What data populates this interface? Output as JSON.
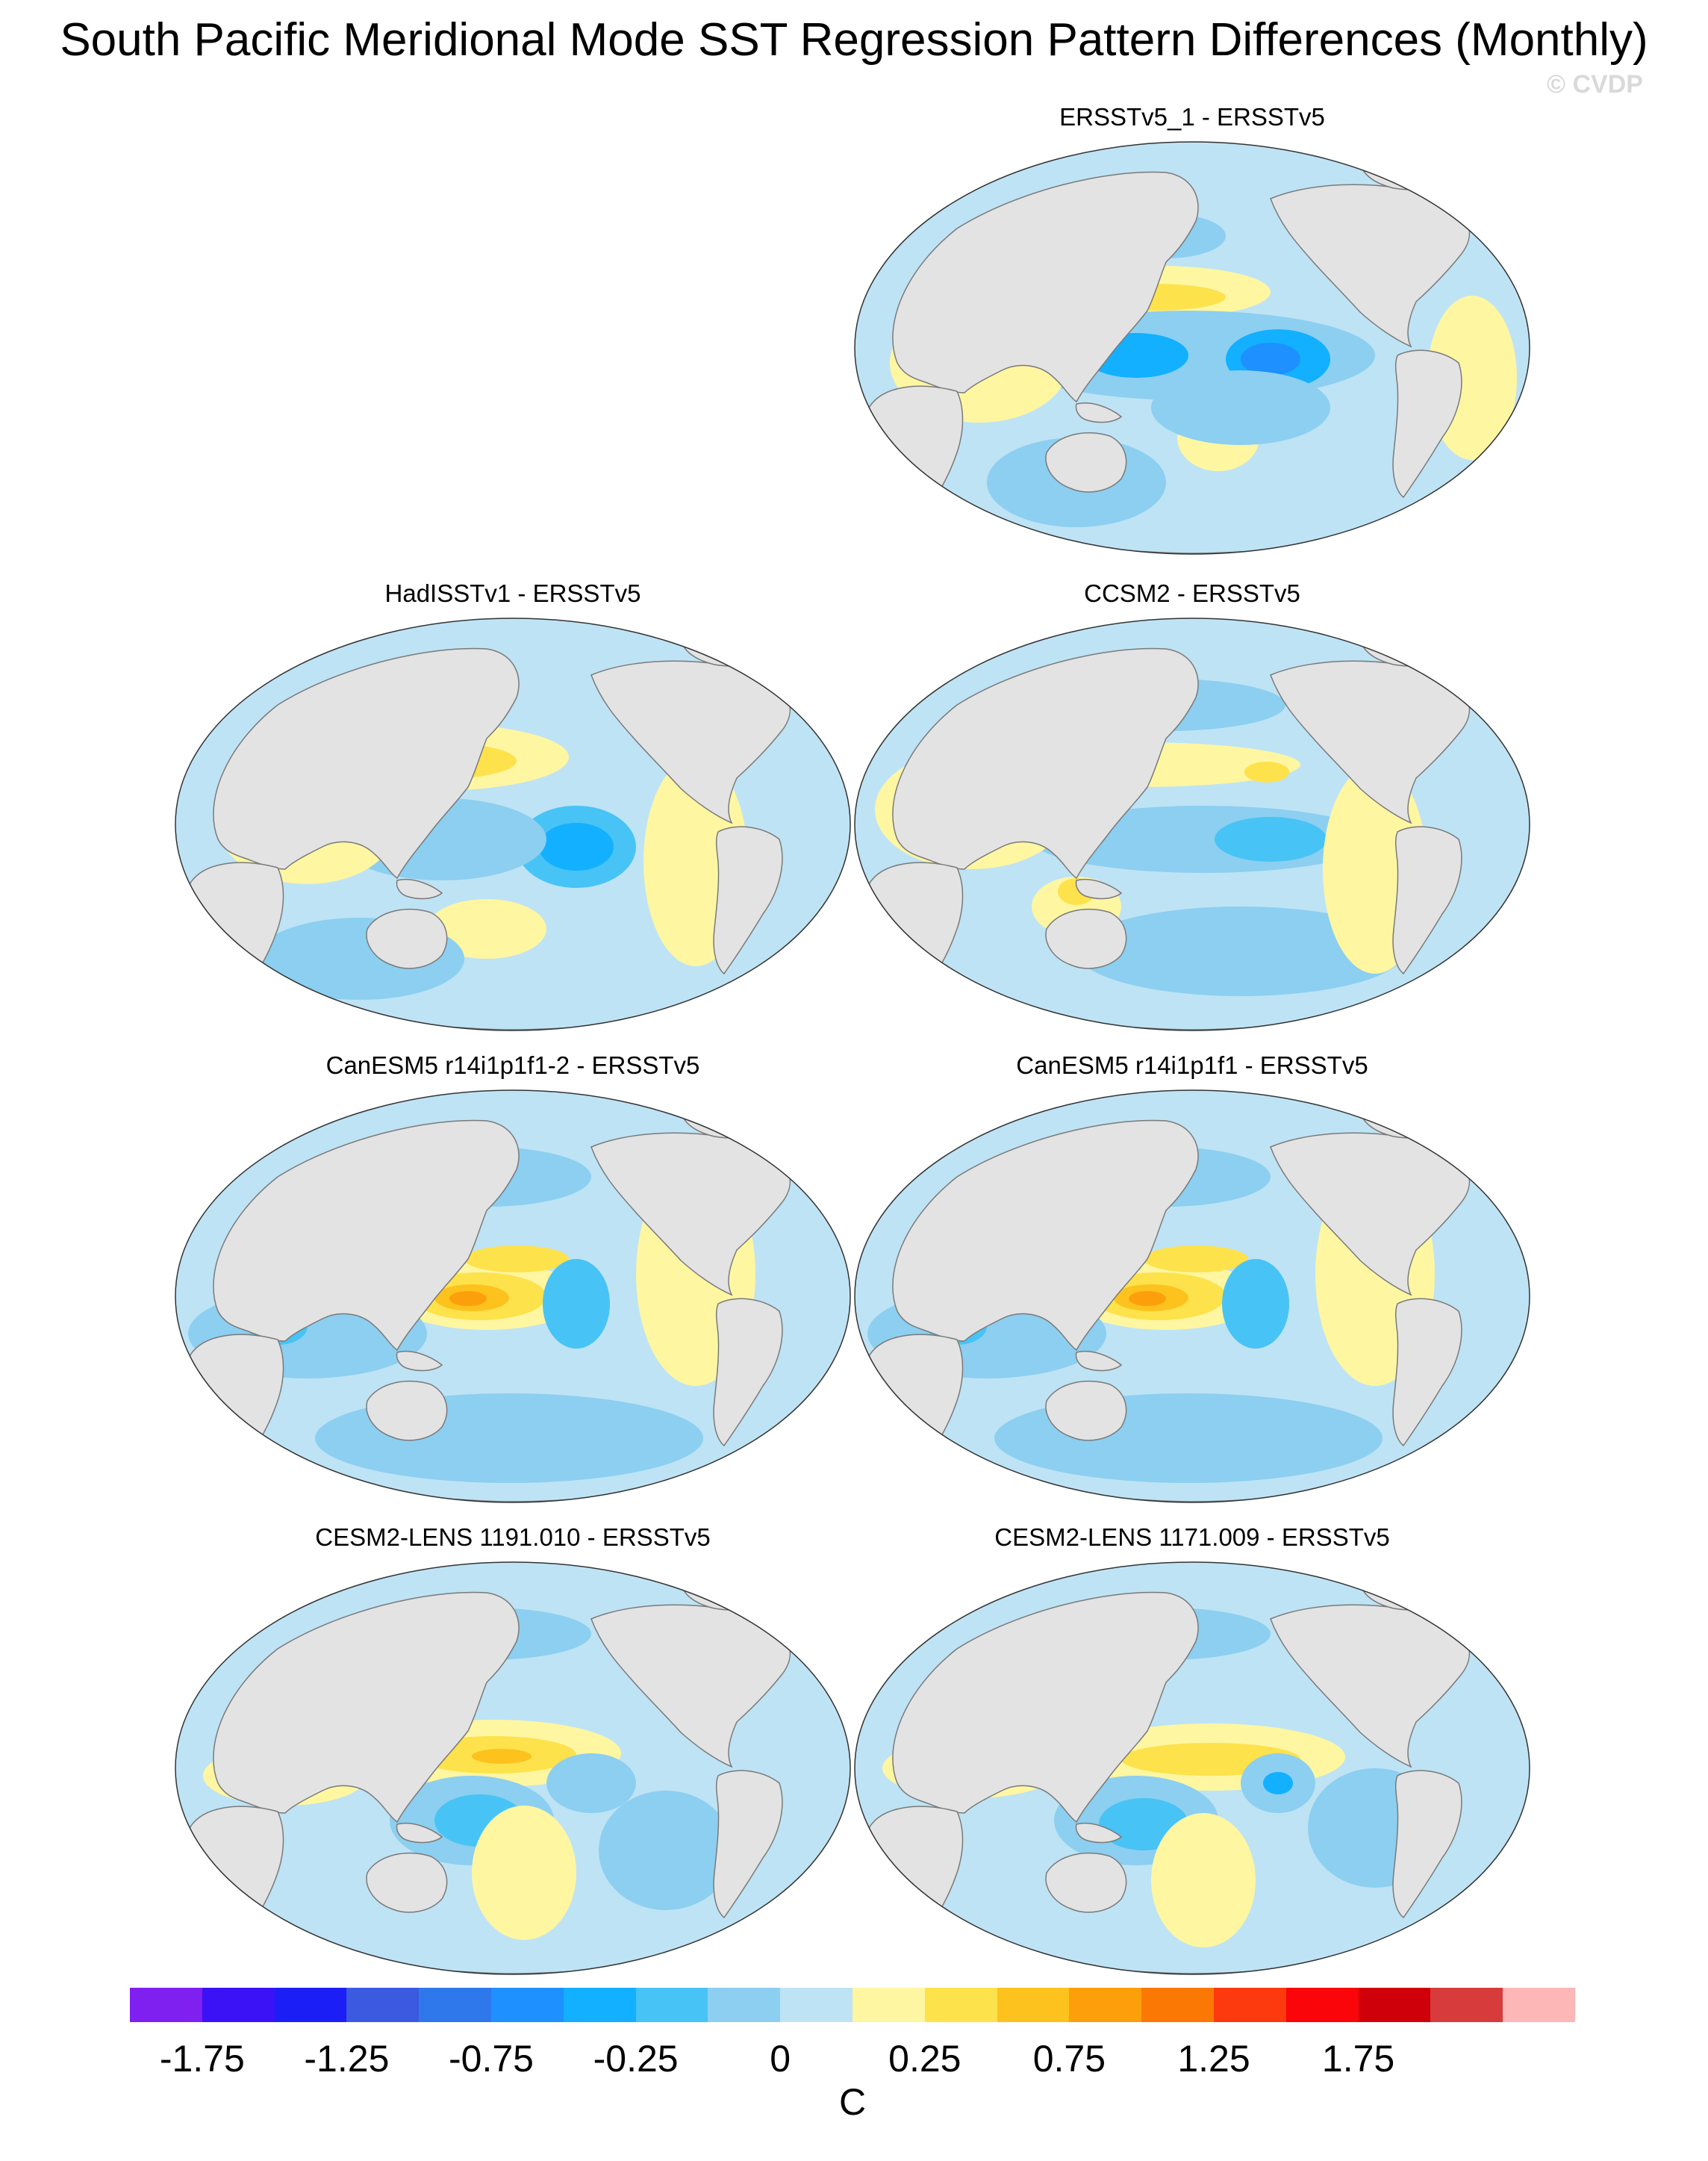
{
  "title": "South Pacific Meridional Mode SST Regression Pattern Differences (Monthly)",
  "watermark": "© CVDP",
  "panels": [
    {
      "label": "ERSSTv5_1 - ERSSTv5"
    },
    {
      "label": "HadISSTv1 - ERSSTv5"
    },
    {
      "label": "CCSM2 - ERSSTv5"
    },
    {
      "label": "CanESM5 r14i1p1f1-2 - ERSSTv5"
    },
    {
      "label": "CanESM5 r14i1p1f1 - ERSSTv5"
    },
    {
      "label": "CESM2-LENS 1191.010 - ERSSTv5"
    },
    {
      "label": "CESM2-LENS 1171.009 - ERSSTv5"
    }
  ],
  "colorbar": {
    "units": "C",
    "colors": [
      "#7f1ff0",
      "#3a12f5",
      "#1b1ff5",
      "#3b5ae0",
      "#2f78ec",
      "#1e90ff",
      "#12b0ff",
      "#48c3f5",
      "#8ccff0",
      "#bee3f5",
      "#fff6a2",
      "#fde24c",
      "#fdc21d",
      "#fd9f0a",
      "#fb7805",
      "#fd3a0d",
      "#f9050a",
      "#d0000b",
      "#d83b3b",
      "#fdb7b7"
    ],
    "tick_labels": [
      "-1.75",
      "-1.25",
      "-0.75",
      "-0.25",
      "0",
      "0.25",
      "0.75",
      "1.25",
      "1.75"
    ]
  }
}
